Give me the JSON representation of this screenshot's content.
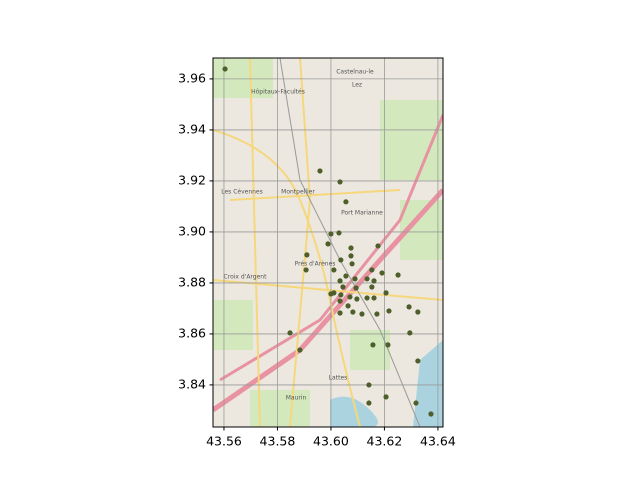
{
  "chart_data": {
    "type": "scatter",
    "x": [
      43.5604,
      43.5959,
      43.6034,
      43.6056,
      43.6,
      43.603,
      43.5989,
      43.591,
      43.5907,
      43.6011,
      43.6075,
      43.6075,
      43.6176,
      43.6037,
      43.6079,
      43.6056,
      43.6034,
      43.609,
      43.6153,
      43.6191,
      43.6251,
      43.6161,
      43.6135,
      43.6153,
      43.6094,
      43.6045,
      43.6011,
      43.6,
      43.6037,
      43.6071,
      43.6097,
      43.6135,
      43.6161,
      43.6206,
      43.6034,
      43.6064,
      43.6082,
      43.6034,
      43.6116,
      43.6172,
      43.6217,
      43.6292,
      43.6325,
      43.5847,
      43.5884,
      43.6157,
      43.6213,
      43.6295,
      43.6325,
      43.6142,
      43.6206,
      43.6142,
      43.6318,
      43.6374
    ],
    "y": [
      3.9639,
      3.9239,
      3.9196,
      3.9118,
      3.8992,
      3.8996,
      3.8953,
      3.891,
      3.8851,
      3.8851,
      3.8937,
      3.8906,
      3.8945,
      3.889,
      3.8875,
      3.8827,
      3.8808,
      3.8816,
      3.8851,
      3.8839,
      3.8831,
      3.8808,
      3.8816,
      3.8784,
      3.878,
      3.8784,
      3.8761,
      3.8757,
      3.8753,
      3.8745,
      3.8737,
      3.8741,
      3.8741,
      3.8761,
      3.8729,
      3.871,
      3.8686,
      3.8682,
      3.8678,
      3.8678,
      3.869,
      3.8706,
      3.8686,
      3.8604,
      3.8537,
      3.8557,
      3.8557,
      3.8604,
      3.8494,
      3.84,
      3.8353,
      3.8329,
      3.8329,
      3.8286
    ],
    "color": "#4e5f2b",
    "xlim": [
      43.5559,
      43.6419
    ],
    "ylim": [
      3.8235,
      3.9682
    ],
    "xticks": [
      43.56,
      43.58,
      {
        "value": 43.6,
        "label": "43.60"
      },
      43.62,
      43.64
    ],
    "yticks": [
      3.84,
      3.86,
      3.88,
      {
        "value": 3.9,
        "label": "3.90"
      },
      3.92,
      3.94,
      3.96
    ],
    "grid": true,
    "annotations": [
      "Castelnau-le",
      "Lez",
      "Hôpitaux-Facultés",
      "Montpellier",
      "Les Cévennes",
      "Port Marianne",
      "Prés d'Arènes",
      "Croix d'Argent",
      "Lattes",
      "Maurin"
    ]
  }
}
